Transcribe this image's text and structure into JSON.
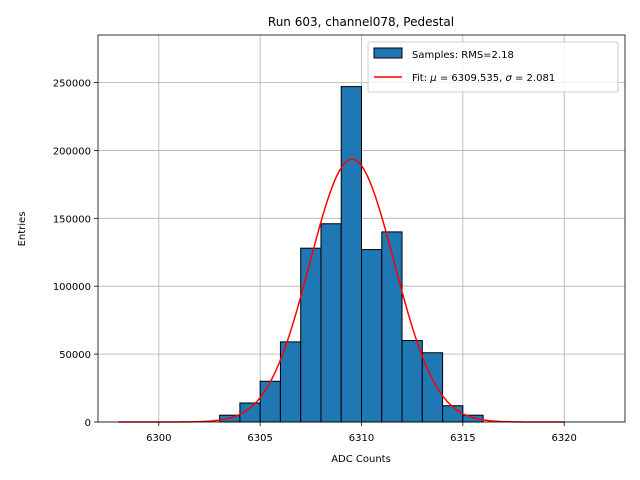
{
  "chart_data": {
    "type": "bar",
    "title": "Run 603, channel078, Pedestal",
    "xlabel": "ADC Counts",
    "ylabel": "Entries",
    "xlim": [
      6297,
      6323
    ],
    "ylim": [
      0,
      285000
    ],
    "grid": true,
    "legend_position": "top-right",
    "x_ticks": [
      6300,
      6305,
      6310,
      6315,
      6320
    ],
    "x_tick_labels": [
      "6300",
      "6305",
      "6310",
      "6315",
      "6320"
    ],
    "y_ticks": [
      0,
      50000,
      100000,
      150000,
      200000,
      250000
    ],
    "y_tick_labels": [
      "0",
      "50000",
      "100000",
      "150000",
      "200000",
      "250000"
    ],
    "bin_width": 1,
    "bins": [
      {
        "left": 6303,
        "value": 5000
      },
      {
        "left": 6304,
        "value": 14000
      },
      {
        "left": 6305,
        "value": 30000
      },
      {
        "left": 6306,
        "value": 59000
      },
      {
        "left": 6307,
        "value": 128000
      },
      {
        "left": 6308,
        "value": 146000
      },
      {
        "left": 6309,
        "value": 247000
      },
      {
        "left": 6310,
        "value": 127000
      },
      {
        "left": 6311,
        "value": 140000
      },
      {
        "left": 6312,
        "value": 60000
      },
      {
        "left": 6313,
        "value": 51000
      },
      {
        "left": 6314,
        "value": 12000
      },
      {
        "left": 6315,
        "value": 5000
      }
    ],
    "fit": {
      "mu": 6309.535,
      "sigma": 2.081,
      "amplitude": 193500,
      "x_range": [
        6298,
        6320
      ]
    },
    "legend": [
      {
        "label": "Samples: RMS=2.18",
        "kind": "patch",
        "color": "#1f77b4"
      },
      {
        "label_prefix": "Fit: ",
        "mu_symbol": "μ",
        "mu_text": " = 6309.535, ",
        "sigma_symbol": "σ",
        "sigma_text": " = 2.081",
        "kind": "line",
        "color": "#ff0000"
      }
    ]
  }
}
